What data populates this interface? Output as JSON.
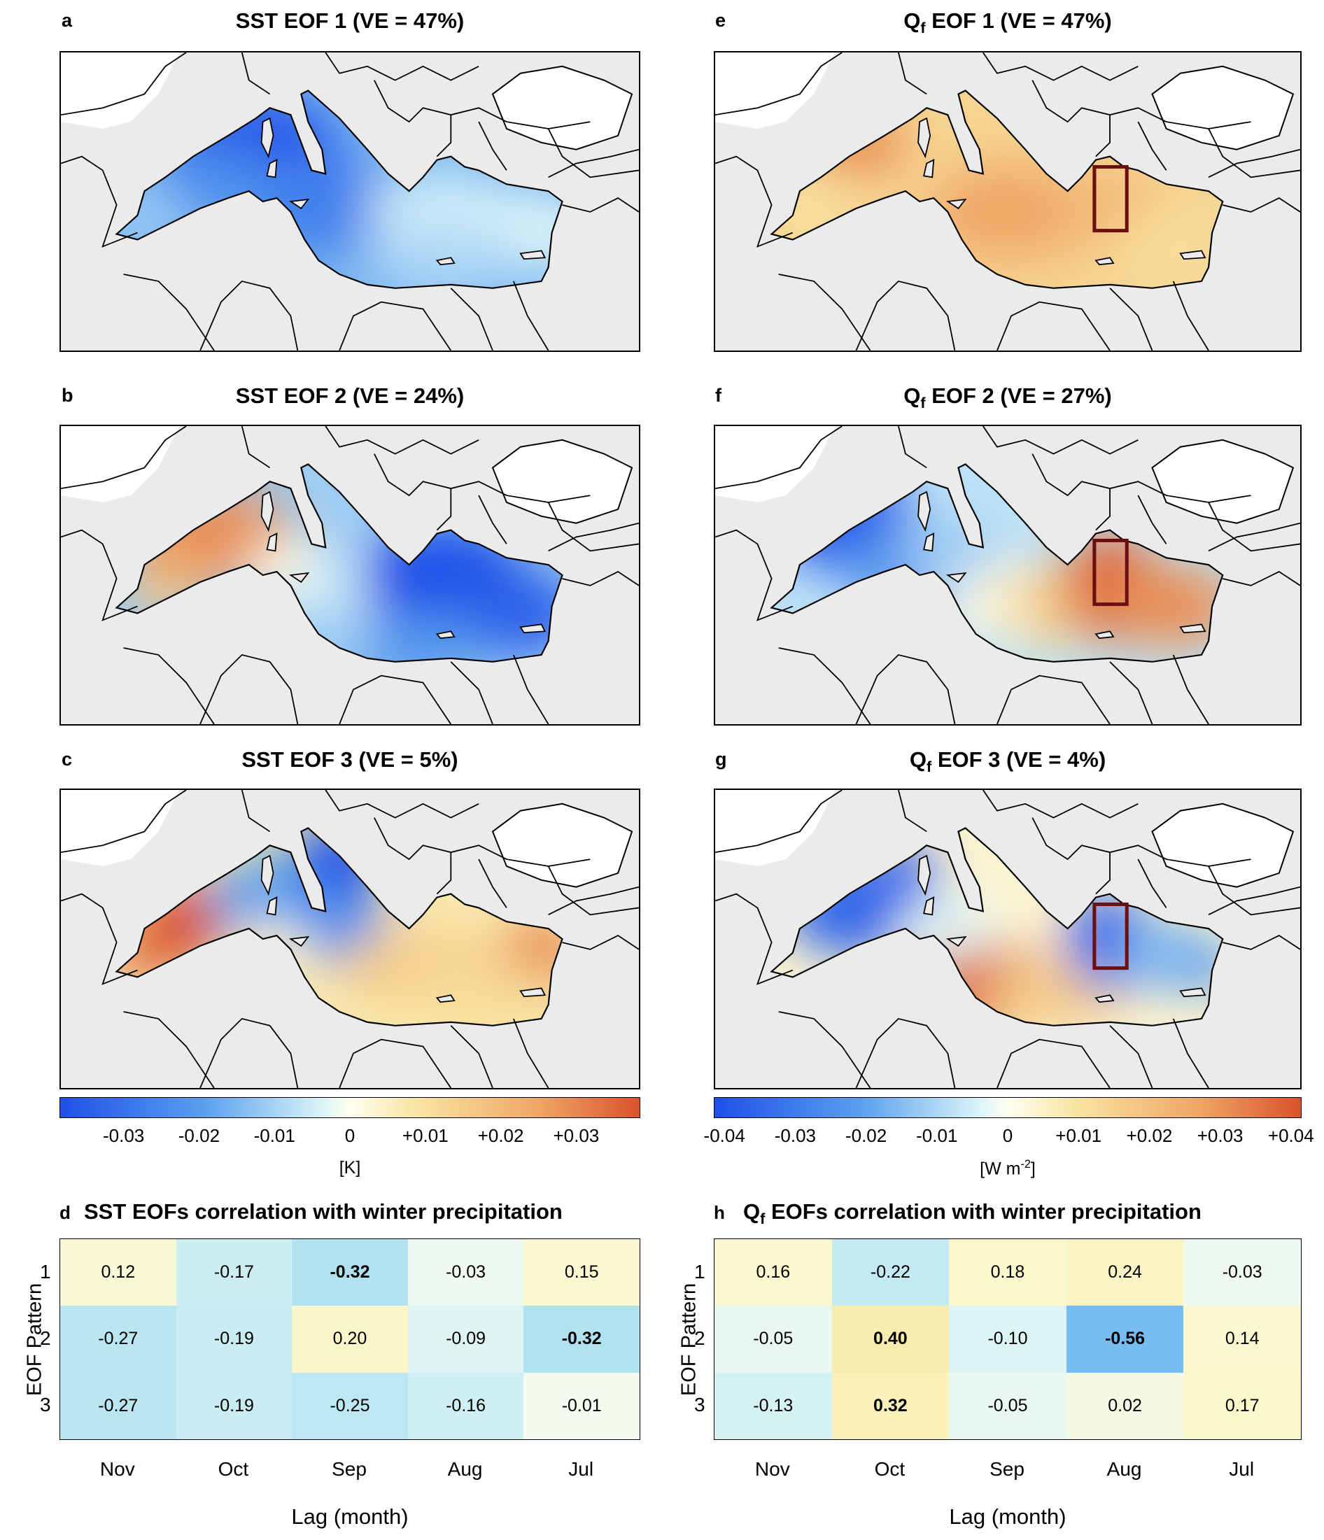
{
  "panels": {
    "a": {
      "letter": "a",
      "title": "SST EOF 1 (VE  = 47%)"
    },
    "b": {
      "letter": "b",
      "title": "SST EOF 2 (VE  = 24%)"
    },
    "c": {
      "letter": "c",
      "title": "SST EOF 3 (VE  = 5%)"
    },
    "e": {
      "letter": "e",
      "title_pre": "Q",
      "title_sub": "f",
      "title_post": " EOF 1 (VE  = 47%)"
    },
    "f": {
      "letter": "f",
      "title_pre": "Q",
      "title_sub": "f",
      "title_post": " EOF 2 (VE  = 27%)"
    },
    "g": {
      "letter": "g",
      "title_pre": "Q",
      "title_sub": "f",
      "title_post": " EOF 3 (VE  = 4%)"
    },
    "d": {
      "letter": "d",
      "title": "SST EOFs correlation with winter precipitation"
    },
    "h": {
      "letter": "h",
      "title_pre": "Q",
      "title_sub": "f",
      "title_post": " EOFs correlation with winter precipitation"
    }
  },
  "colorbars": {
    "sst": {
      "ticks": [
        "-0.03",
        "-0.02",
        "-0.01",
        "0",
        "+0.01",
        "+0.02",
        "+0.03"
      ],
      "unit": "[K]"
    },
    "qf": {
      "ticks": [
        "-0.04",
        "-0.03",
        "-0.02",
        "-0.01",
        "0",
        "+0.01",
        "+0.02",
        "+0.03",
        "+0.04"
      ],
      "unit_pre": "[W m",
      "unit_sup": "-2",
      "unit_post": "]"
    }
  },
  "colors": {
    "blue": "#1f4fe8",
    "white": "#fffff0",
    "red": "#d8532b",
    "land": "#ebebeb",
    "box": "#6b1010"
  },
  "chart_data": [
    {
      "type": "heatmap",
      "title": "SST EOFs correlation with winter precipitation",
      "xlabel": "Lag (month)",
      "ylabel": "EOF Pattern",
      "x": [
        "Nov",
        "Oct",
        "Sep",
        "Aug",
        "Jul"
      ],
      "y": [
        "1",
        "2",
        "3"
      ],
      "values": [
        [
          0.12,
          -0.17,
          -0.32,
          -0.03,
          0.15
        ],
        [
          -0.27,
          -0.19,
          0.2,
          -0.09,
          -0.32
        ],
        [
          -0.27,
          -0.19,
          -0.25,
          -0.16,
          -0.01
        ]
      ],
      "labels": [
        [
          "0.12",
          "-0.17",
          "-0.32",
          "-0.03",
          "0.15"
        ],
        [
          "-0.27",
          "-0.19",
          "0.20",
          "-0.09",
          "-0.32"
        ],
        [
          "-0.27",
          "-0.19",
          "-0.25",
          "-0.16",
          "-0.01"
        ]
      ],
      "bold": [
        [
          false,
          false,
          true,
          false,
          false
        ],
        [
          false,
          false,
          false,
          false,
          true
        ],
        [
          false,
          false,
          false,
          false,
          false
        ]
      ]
    },
    {
      "type": "heatmap",
      "title": "Qf EOFs correlation with winter precipitation",
      "xlabel": "Lag (month)",
      "ylabel": "EOF Pattern",
      "x": [
        "Nov",
        "Oct",
        "Sep",
        "Aug",
        "Jul"
      ],
      "y": [
        "1",
        "2",
        "3"
      ],
      "values": [
        [
          0.16,
          -0.22,
          0.18,
          0.24,
          -0.03
        ],
        [
          -0.05,
          0.4,
          -0.1,
          -0.56,
          0.14
        ],
        [
          -0.13,
          0.32,
          -0.05,
          0.02,
          0.17
        ]
      ],
      "labels": [
        [
          "0.16",
          "-0.22",
          "0.18",
          "0.24",
          "-0.03"
        ],
        [
          "-0.05",
          "0.40",
          "-0.10",
          "-0.56",
          "0.14"
        ],
        [
          "-0.13",
          "0.32",
          "-0.05",
          "0.02",
          "0.17"
        ]
      ],
      "bold": [
        [
          false,
          false,
          false,
          false,
          false
        ],
        [
          false,
          true,
          false,
          true,
          false
        ],
        [
          false,
          true,
          false,
          false,
          false
        ]
      ]
    }
  ]
}
